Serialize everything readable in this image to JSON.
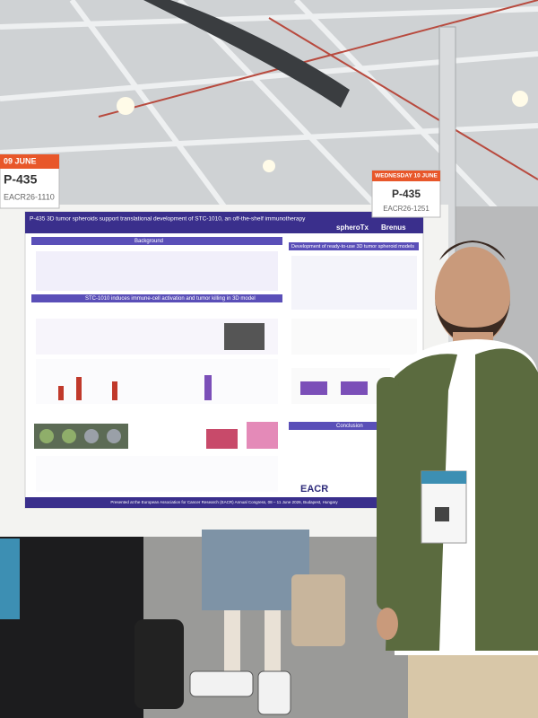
{
  "left_sign": {
    "date": "09 JUNE",
    "code": "P-435",
    "id": "EACR26-1110"
  },
  "right_sign": {
    "date": "WEDNESDAY 10 JUNE",
    "code": "P-435",
    "id": "EACR26-1251"
  },
  "poster": {
    "title": "P-435 3D tumor spheroids support translational development of STC-1010, an off-the-shelf immunotherapy",
    "logo_left": "spheroTx",
    "logo_right": "Brenus",
    "sections": [
      "Background",
      "STC-1010 induces immune-cell activation and tumor killing in 3D model",
      "Development of ready-to-use 3D tumor spheroid models",
      "Conclusion"
    ],
    "sponsor": "EACR",
    "footer": "Presented at the European Association for Cancer Research (EACR) Annual Congress, 08 – 11 June 2026, Budapest, Hungary"
  }
}
